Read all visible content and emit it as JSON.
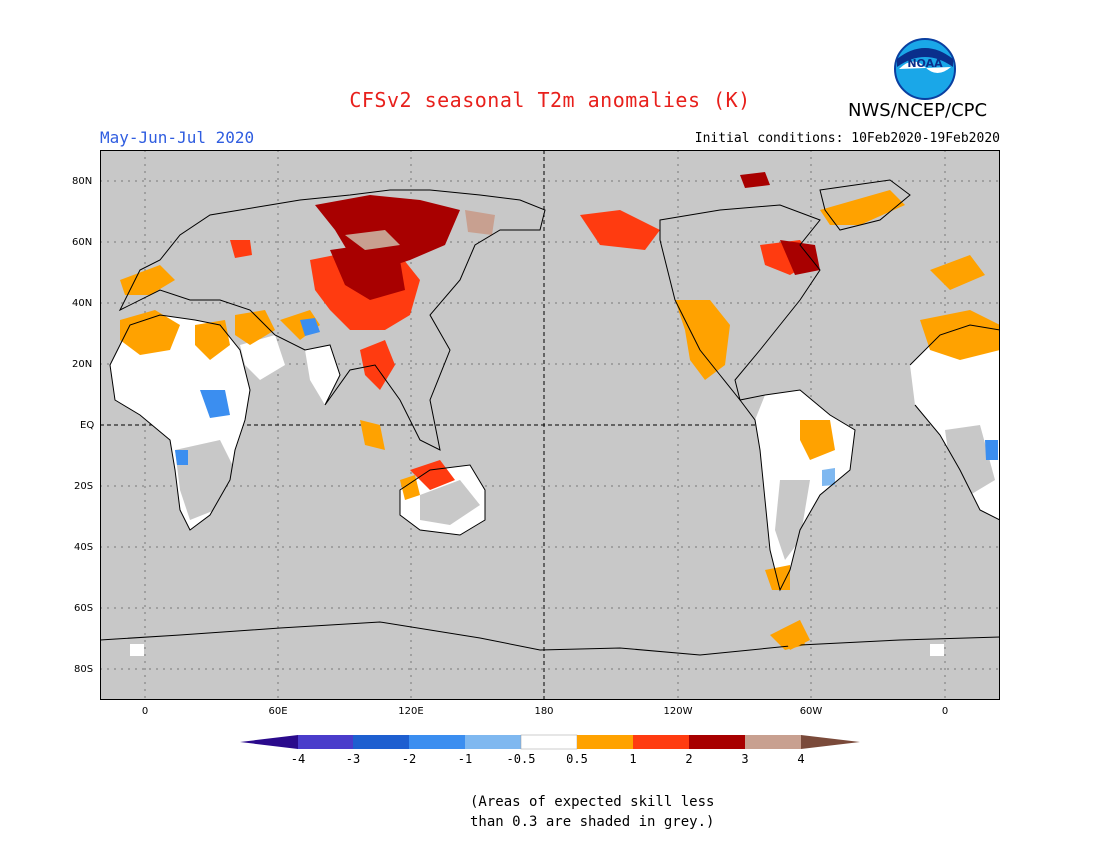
{
  "title": "CFSv2 seasonal T2m anomalies (K)",
  "season": "May-Jun-Jul 2020",
  "agency": "NWS/NCEP/CPC",
  "logo_text": "NOAA",
  "initial_conditions": "Initial conditions: 10Feb2020-19Feb2020",
  "map": {
    "projection": "cylindrical equidistant",
    "lon_range": [
      -20,
      380
    ],
    "lat_range": [
      -90,
      90
    ],
    "background_color": "#c8c8c8",
    "lat_labels": [
      "80N",
      "60N",
      "40N",
      "20N",
      "EQ",
      "20S",
      "40S",
      "60S",
      "80S"
    ],
    "lat_values": [
      80,
      60,
      40,
      20,
      0,
      -20,
      -40,
      -60,
      -80
    ],
    "lon_labels": [
      "0",
      "60E",
      "120E",
      "180",
      "120W",
      "60W",
      "0"
    ],
    "lon_values": [
      0,
      60,
      120,
      180,
      240,
      300,
      360
    ]
  },
  "colorbar": {
    "labels": [
      "-4",
      "-3",
      "-2",
      "-1",
      "-0.5",
      "0.5",
      "1",
      "2",
      "3",
      "4"
    ],
    "colors": [
      "#2a0a8c",
      "#4a3ccb",
      "#1e5fd0",
      "#3b8ef0",
      "#7fb8f0",
      "#ffffff",
      "#ffa200",
      "#ff3b10",
      "#a80000",
      "#c8a090",
      "#7a4a3a"
    ]
  },
  "note_lines": [
    "(Areas of expected skill less",
    "than 0.3 are shaded in grey.)"
  ]
}
